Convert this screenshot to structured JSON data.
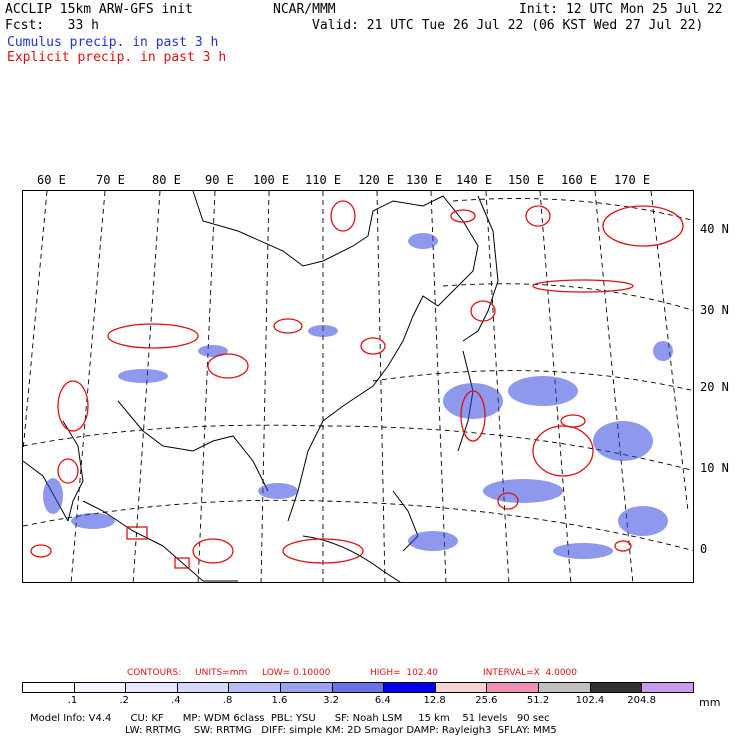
{
  "header": {
    "line1_left": "ACCLIP 15km ARW-GFS init",
    "line1_center": "NCAR/MMM",
    "line1_right": "Init: 12 UTC Mon 25 Jul 22",
    "line2_left": "Fcst:   33 h",
    "line2_right": "Valid: 21 UTC Tue 26 Jul 22 (06 KST Wed 27 Jul 22)",
    "legend_cumulus": "Cumulus precip. in past 3 h",
    "legend_explicit": "Explicit precip. in past 3 h"
  },
  "map": {
    "lon_labels": [
      "60 E",
      "70 E",
      "80 E",
      "90 E",
      "100 E",
      "110 E",
      "120 E",
      "130 E",
      "140 E",
      "150 E",
      "160 E",
      "170 E"
    ],
    "lat_labels": [
      "40 N",
      "30 N",
      "20 N",
      "10 N",
      "0"
    ],
    "colors": {
      "cumulus": "#2233cc",
      "explicit": "#dd1111",
      "coast": "#000000",
      "grid": "#000000"
    }
  },
  "contours": {
    "label": "CONTOURS:",
    "units": "UNITS=mm",
    "low": "LOW= 0.10000",
    "high": "HIGH=  102.40",
    "interval": "INTERVAL=X  4.0000"
  },
  "colorbar": {
    "unit": "mm",
    "ticks": [
      ".1",
      ".2",
      ".4",
      ".8",
      "1.6",
      "3.2",
      "6.4",
      "12.8",
      "25.6",
      "51.2",
      "102.4",
      "204.8"
    ],
    "colors": [
      "#ffffff",
      "#f4f4ff",
      "#e6e8ff",
      "#d4d8fb",
      "#b7bdf4",
      "#9aa1ee",
      "#6a72ea",
      "#0000ee",
      "#f7d2d2",
      "#f090b8",
      "#c0c0c0",
      "#333333",
      "#cc99ee"
    ]
  },
  "footer": {
    "line1": "Model Info: V4.4      CU: KF      MP: WDM 6class  PBL: YSU      SF: Noah LSM     15 km    51 levels   90 sec",
    "line2": "LW: RRTMG    SW: RRTMG   DIFF: simple KM: 2D Smagor DAMP: Rayleigh3  SFLAY: MM5"
  }
}
